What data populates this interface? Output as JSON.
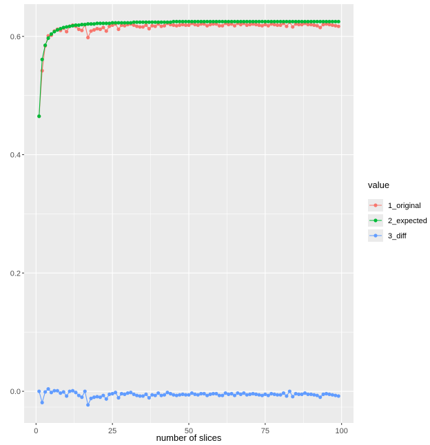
{
  "chart_data": {
    "type": "line",
    "title": "",
    "xlabel": "number of slices",
    "ylabel": "",
    "xlim": [
      -3.9,
      103.9
    ],
    "ylim": [
      -0.0535,
      0.6545
    ],
    "x_ticks": [
      0,
      25,
      50,
      75,
      100
    ],
    "x_tick_labels": [
      "0",
      "25",
      "50",
      "75",
      "100"
    ],
    "y_ticks": [
      0.0,
      0.2,
      0.4,
      0.6
    ],
    "y_tick_labels": [
      "0.0",
      "0.2",
      "0.4",
      "0.6"
    ],
    "grid": true,
    "legend": {
      "title": "value",
      "position": "right"
    },
    "x": [
      1,
      2,
      3,
      4,
      5,
      6,
      7,
      8,
      9,
      10,
      11,
      12,
      13,
      14,
      15,
      16,
      17,
      18,
      19,
      20,
      21,
      22,
      23,
      24,
      25,
      26,
      27,
      28,
      29,
      30,
      31,
      32,
      33,
      34,
      35,
      36,
      37,
      38,
      39,
      40,
      41,
      42,
      43,
      44,
      45,
      46,
      47,
      48,
      49,
      50,
      51,
      52,
      53,
      54,
      55,
      56,
      57,
      58,
      59,
      60,
      61,
      62,
      63,
      64,
      65,
      66,
      67,
      68,
      69,
      70,
      71,
      72,
      73,
      74,
      75,
      76,
      77,
      78,
      79,
      80,
      81,
      82,
      83,
      84,
      85,
      86,
      87,
      88,
      89,
      90,
      91,
      92,
      93,
      94,
      95,
      96,
      97,
      98,
      99
    ],
    "series": [
      {
        "name": "1_original",
        "color": "#F8766D",
        "values": [
          0.465,
          0.542,
          0.584,
          0.601,
          0.602,
          0.609,
          0.612,
          0.61,
          0.614,
          0.608,
          0.617,
          0.619,
          0.617,
          0.612,
          0.61,
          0.62,
          0.598,
          0.609,
          0.611,
          0.613,
          0.612,
          0.615,
          0.609,
          0.617,
          0.619,
          0.621,
          0.612,
          0.619,
          0.618,
          0.62,
          0.621,
          0.619,
          0.617,
          0.616,
          0.616,
          0.619,
          0.613,
          0.618,
          0.617,
          0.621,
          0.617,
          0.618,
          0.622,
          0.62,
          0.619,
          0.618,
          0.619,
          0.62,
          0.619,
          0.619,
          0.622,
          0.62,
          0.619,
          0.621,
          0.621,
          0.618,
          0.62,
          0.621,
          0.621,
          0.618,
          0.618,
          0.622,
          0.62,
          0.621,
          0.618,
          0.622,
          0.62,
          0.622,
          0.619,
          0.62,
          0.621,
          0.62,
          0.619,
          0.618,
          0.62,
          0.618,
          0.621,
          0.62,
          0.619,
          0.619,
          0.622,
          0.617,
          0.624,
          0.616,
          0.621,
          0.62,
          0.62,
          0.622,
          0.62,
          0.62,
          0.619,
          0.618,
          0.615,
          0.62,
          0.621,
          0.62,
          0.619,
          0.618,
          0.617
        ]
      },
      {
        "name": "2_expected",
        "color": "#00BA38",
        "values": [
          0.465,
          0.561,
          0.585,
          0.597,
          0.604,
          0.608,
          0.611,
          0.613,
          0.615,
          0.616,
          0.617,
          0.618,
          0.619,
          0.619,
          0.62,
          0.62,
          0.621,
          0.621,
          0.621,
          0.622,
          0.622,
          0.622,
          0.622,
          0.622,
          0.623,
          0.623,
          0.623,
          0.623,
          0.623,
          0.623,
          0.623,
          0.624,
          0.624,
          0.624,
          0.624,
          0.624,
          0.624,
          0.624,
          0.624,
          0.624,
          0.624,
          0.624,
          0.624,
          0.624,
          0.625,
          0.625,
          0.625,
          0.625,
          0.625,
          0.625,
          0.625,
          0.625,
          0.625,
          0.625,
          0.625,
          0.625,
          0.625,
          0.625,
          0.625,
          0.625,
          0.625,
          0.625,
          0.625,
          0.625,
          0.625,
          0.625,
          0.625,
          0.625,
          0.625,
          0.625,
          0.625,
          0.625,
          0.625,
          0.625,
          0.625,
          0.625,
          0.625,
          0.625,
          0.625,
          0.625,
          0.625,
          0.625,
          0.625,
          0.625,
          0.625,
          0.625,
          0.625,
          0.625,
          0.625,
          0.625,
          0.625,
          0.625,
          0.625,
          0.625,
          0.625,
          0.625,
          0.625,
          0.625,
          0.625
        ]
      },
      {
        "name": "3_diff",
        "color": "#619CFF",
        "values": [
          0.0,
          -0.019,
          -0.001,
          0.004,
          -0.002,
          0.001,
          0.001,
          -0.003,
          -0.001,
          -0.008,
          0.0,
          0.001,
          -0.002,
          -0.007,
          -0.01,
          0.0,
          -0.023,
          -0.012,
          -0.01,
          -0.009,
          -0.01,
          -0.007,
          -0.013,
          -0.005,
          -0.004,
          -0.002,
          -0.011,
          -0.004,
          -0.005,
          -0.003,
          -0.002,
          -0.005,
          -0.007,
          -0.008,
          -0.008,
          -0.005,
          -0.011,
          -0.006,
          -0.007,
          -0.003,
          -0.007,
          -0.006,
          -0.002,
          -0.004,
          -0.006,
          -0.007,
          -0.006,
          -0.005,
          -0.006,
          -0.006,
          -0.003,
          -0.005,
          -0.006,
          -0.004,
          -0.004,
          -0.007,
          -0.005,
          -0.004,
          -0.004,
          -0.007,
          -0.007,
          -0.003,
          -0.005,
          -0.004,
          -0.007,
          -0.003,
          -0.005,
          -0.003,
          -0.006,
          -0.005,
          -0.004,
          -0.005,
          -0.006,
          -0.007,
          -0.005,
          -0.007,
          -0.004,
          -0.005,
          -0.006,
          -0.006,
          -0.003,
          -0.008,
          0.0,
          -0.009,
          -0.004,
          -0.005,
          -0.005,
          -0.003,
          -0.005,
          -0.005,
          -0.006,
          -0.007,
          -0.01,
          -0.005,
          -0.004,
          -0.005,
          -0.006,
          -0.007,
          -0.008
        ]
      }
    ]
  }
}
